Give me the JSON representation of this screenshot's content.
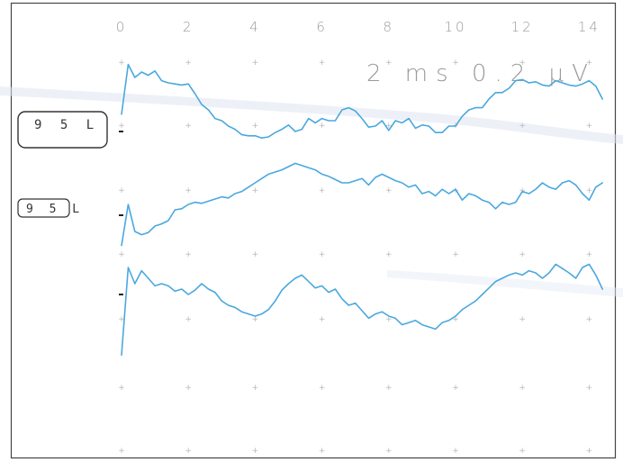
{
  "chart_data": {
    "type": "line",
    "x_ticks": [
      "0",
      "2",
      "4",
      "6",
      "8",
      "10",
      "12",
      "14"
    ],
    "xlim": [
      0,
      14.5
    ],
    "scale_label": "2 ms  0.2 μV",
    "line_color": "#4aa8df",
    "series": [
      {
        "name": "95 L",
        "x": [
          0,
          0.2,
          0.4,
          0.6,
          0.8,
          1.0,
          1.2,
          1.4,
          1.6,
          1.8,
          2.0,
          2.2,
          2.4,
          2.6,
          2.8,
          3.0,
          3.2,
          3.4,
          3.6,
          3.8,
          4.0,
          4.2,
          4.4,
          4.6,
          4.8,
          5.0,
          5.2,
          5.4,
          5.6,
          5.8,
          6.0,
          6.2,
          6.4,
          6.6,
          6.8,
          7.0,
          7.2,
          7.4,
          7.6,
          7.8,
          8.0,
          8.2,
          8.4,
          8.6,
          8.8,
          9.0,
          9.2,
          9.4,
          9.6,
          9.8,
          10.0,
          10.2,
          10.4,
          10.6,
          10.8,
          11.0,
          11.2,
          11.4,
          11.6,
          11.8,
          12.0,
          12.2,
          12.4,
          12.6,
          12.8,
          13.0,
          13.2,
          13.4,
          13.6,
          13.8,
          14.0,
          14.2,
          14.4
        ],
        "y": [
          0.16,
          0.62,
          0.5,
          0.55,
          0.52,
          0.56,
          0.47,
          0.45,
          0.44,
          0.43,
          0.44,
          0.35,
          0.25,
          0.2,
          0.12,
          0.1,
          0.05,
          0.02,
          -0.03,
          -0.04,
          -0.04,
          -0.06,
          -0.05,
          -0.01,
          0.02,
          0.06,
          0.0,
          0.02,
          0.12,
          0.08,
          0.12,
          0.1,
          0.1,
          0.2,
          0.22,
          0.19,
          0.12,
          0.04,
          0.05,
          0.1,
          0.01,
          0.1,
          0.08,
          0.12,
          0.03,
          0.06,
          0.05,
          -0.01,
          -0.01,
          0.05,
          0.05,
          0.14,
          0.2,
          0.22,
          0.22,
          0.3,
          0.36,
          0.36,
          0.4,
          0.47,
          0.48,
          0.45,
          0.46,
          0.43,
          0.42,
          0.47,
          0.45,
          0.43,
          0.42,
          0.44,
          0.47,
          0.42,
          0.3
        ]
      },
      {
        "name": "95 L",
        "x": [
          0,
          0.2,
          0.4,
          0.6,
          0.8,
          1.0,
          1.2,
          1.4,
          1.6,
          1.8,
          2.0,
          2.2,
          2.4,
          2.6,
          2.8,
          3.0,
          3.2,
          3.4,
          3.6,
          3.8,
          4.0,
          4.2,
          4.4,
          4.6,
          4.8,
          5.0,
          5.2,
          5.4,
          5.6,
          5.8,
          6.0,
          6.2,
          6.4,
          6.6,
          6.8,
          7.0,
          7.2,
          7.4,
          7.6,
          7.8,
          8.0,
          8.2,
          8.4,
          8.6,
          8.8,
          9.0,
          9.2,
          9.4,
          9.6,
          9.8,
          10.0,
          10.2,
          10.4,
          10.6,
          10.8,
          11.0,
          11.2,
          11.4,
          11.6,
          11.8,
          12.0,
          12.2,
          12.4,
          12.6,
          12.8,
          13.0,
          13.2,
          13.4,
          13.6,
          13.8,
          14.0,
          14.2,
          14.4
        ],
        "y": [
          -0.28,
          0.1,
          -0.15,
          -0.18,
          -0.16,
          -0.1,
          -0.08,
          -0.05,
          0.05,
          0.06,
          0.1,
          0.12,
          0.11,
          0.13,
          0.15,
          0.17,
          0.16,
          0.2,
          0.22,
          0.26,
          0.3,
          0.34,
          0.38,
          0.4,
          0.42,
          0.45,
          0.48,
          0.46,
          0.44,
          0.42,
          0.38,
          0.36,
          0.33,
          0.3,
          0.3,
          0.32,
          0.34,
          0.28,
          0.35,
          0.38,
          0.35,
          0.32,
          0.3,
          0.26,
          0.28,
          0.2,
          0.22,
          0.18,
          0.24,
          0.2,
          0.24,
          0.14,
          0.2,
          0.18,
          0.14,
          0.12,
          0.06,
          0.12,
          0.1,
          0.12,
          0.22,
          0.2,
          0.24,
          0.3,
          0.26,
          0.24,
          0.3,
          0.32,
          0.28,
          0.2,
          0.14,
          0.26,
          0.3
        ]
      },
      {
        "name": "",
        "x": [
          0,
          0.2,
          0.4,
          0.6,
          0.8,
          1.0,
          1.2,
          1.4,
          1.6,
          1.8,
          2.0,
          2.2,
          2.4,
          2.6,
          2.8,
          3.0,
          3.2,
          3.4,
          3.6,
          3.8,
          4.0,
          4.2,
          4.4,
          4.6,
          4.8,
          5.0,
          5.2,
          5.4,
          5.6,
          5.8,
          6.0,
          6.2,
          6.4,
          6.6,
          6.8,
          7.0,
          7.2,
          7.4,
          7.6,
          7.8,
          8.0,
          8.2,
          8.4,
          8.6,
          8.8,
          9.0,
          9.2,
          9.4,
          9.6,
          9.8,
          10.0,
          10.2,
          10.4,
          10.6,
          10.8,
          11.0,
          11.2,
          11.4,
          11.6,
          11.8,
          12.0,
          12.2,
          12.4,
          12.6,
          12.8,
          13.0,
          13.2,
          13.4,
          13.6,
          13.8,
          14.0,
          14.2,
          14.4
        ],
        "y": [
          -0.56,
          0.25,
          0.1,
          0.22,
          0.15,
          0.08,
          0.1,
          0.08,
          0.03,
          0.05,
          0.0,
          0.04,
          0.1,
          0.05,
          0.02,
          -0.06,
          -0.1,
          -0.12,
          -0.16,
          -0.18,
          -0.2,
          -0.18,
          -0.14,
          -0.06,
          0.04,
          0.1,
          0.15,
          0.18,
          0.12,
          0.06,
          0.08,
          0.02,
          0.05,
          -0.04,
          -0.1,
          -0.08,
          -0.15,
          -0.22,
          -0.18,
          -0.16,
          -0.2,
          -0.22,
          -0.28,
          -0.26,
          -0.24,
          -0.28,
          -0.3,
          -0.32,
          -0.26,
          -0.24,
          -0.2,
          -0.14,
          -0.1,
          -0.06,
          0.0,
          0.06,
          0.12,
          0.15,
          0.18,
          0.2,
          0.18,
          0.22,
          0.2,
          0.15,
          0.2,
          0.28,
          0.24,
          0.2,
          0.15,
          0.25,
          0.28,
          0.18,
          0.05
        ]
      }
    ],
    "grid": "cross-markers"
  },
  "trace_labels": [
    "9 5  L",
    "9 5 L"
  ]
}
